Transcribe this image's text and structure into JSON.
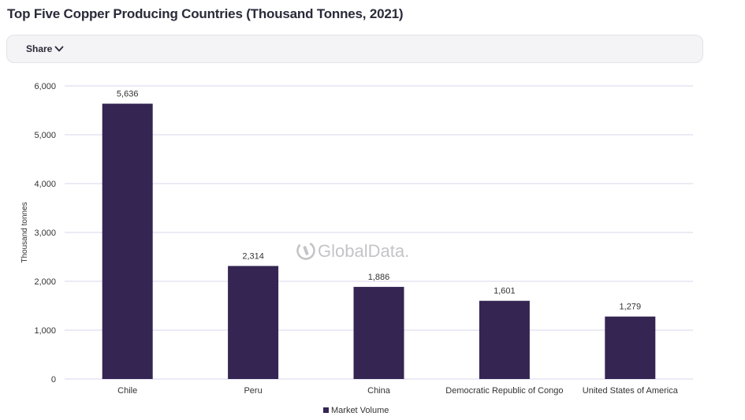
{
  "page": {
    "title": "Top Five Copper Producing Countries (Thousand Tonnes, 2021)",
    "share_label": "Share",
    "watermark": "GlobalData."
  },
  "colors": {
    "bar": "#352552",
    "grid": "#d8d4ea",
    "watermark": "#c4c4c8"
  },
  "chart_data": {
    "type": "bar",
    "title": "Top Five Copper Producing Countries (Thousand Tonnes, 2021)",
    "categories": [
      "Chile",
      "Peru",
      "China",
      "Democratic Republic of Congo",
      "United States of America"
    ],
    "series": [
      {
        "name": "Market Volume",
        "values": [
          5636,
          2314,
          1886,
          1601,
          1279
        ]
      }
    ],
    "data_labels": [
      "5,636",
      "2,314",
      "1,886",
      "1,601",
      "1,279"
    ],
    "xlabel": "",
    "ylabel": "Thousand tonnes",
    "ylim": [
      0,
      6000
    ],
    "yticks": [
      0,
      1000,
      2000,
      3000,
      4000,
      5000,
      6000
    ],
    "ytick_labels": [
      "0",
      "1,000",
      "2,000",
      "3,000",
      "4,000",
      "5,000",
      "6,000"
    ],
    "grid": true,
    "legend": "bottom-center"
  }
}
